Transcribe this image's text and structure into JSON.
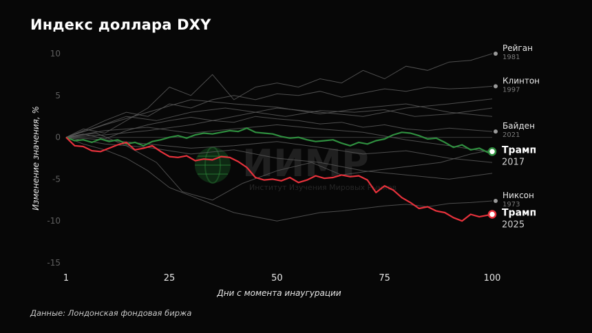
{
  "title": "Индекс доллара DXY",
  "source": "Данные: Лондонская фондовая биржа",
  "watermark": {
    "big": "ИИМР",
    "small": "Институт Изучения Мировых Рынков"
  },
  "colors": {
    "background": "#070707",
    "grey_series": "#5a5a5a",
    "trump2017": "#2f8f3f",
    "trump2025": "#e8323c",
    "zero_line": "#3a3a3a"
  },
  "chart_data": {
    "type": "line",
    "title": "Индекс доллара DXY",
    "xlabel": "Дни с момента инаугурации",
    "ylabel": "Изменение значения, %",
    "xlim": [
      1,
      100
    ],
    "ylim": [
      -15,
      10
    ],
    "x_ticks": [
      "1",
      "25",
      "50",
      "75",
      "100"
    ],
    "y_ticks": [
      "10",
      "5",
      "0",
      "-5",
      "-10",
      "-15"
    ],
    "grid": false,
    "background_series": [
      {
        "name": "Рейган",
        "year": "1981",
        "label_value": 10.0,
        "points": [
          [
            1,
            0
          ],
          [
            5,
            1
          ],
          [
            10,
            0.5
          ],
          [
            15,
            2
          ],
          [
            20,
            3.5
          ],
          [
            25,
            6
          ],
          [
            30,
            5
          ],
          [
            35,
            7.5
          ],
          [
            40,
            4.5
          ],
          [
            45,
            6
          ],
          [
            50,
            6.5
          ],
          [
            55,
            6
          ],
          [
            60,
            7
          ],
          [
            65,
            6.5
          ],
          [
            70,
            8
          ],
          [
            75,
            7
          ],
          [
            80,
            8.5
          ],
          [
            85,
            8
          ],
          [
            90,
            9
          ],
          [
            95,
            9.2
          ],
          [
            100,
            10
          ]
        ]
      },
      {
        "name": "Клинтон",
        "year": "1997",
        "label_value": 6.1,
        "points": [
          [
            1,
            0
          ],
          [
            5,
            0.8
          ],
          [
            10,
            2
          ],
          [
            15,
            3
          ],
          [
            20,
            2.5
          ],
          [
            25,
            4
          ],
          [
            30,
            3.5
          ],
          [
            35,
            4.5
          ],
          [
            40,
            5
          ],
          [
            45,
            4.5
          ],
          [
            50,
            5.2
          ],
          [
            55,
            5
          ],
          [
            60,
            5.5
          ],
          [
            65,
            4.8
          ],
          [
            70,
            5.3
          ],
          [
            75,
            5.8
          ],
          [
            80,
            5.5
          ],
          [
            85,
            6
          ],
          [
            90,
            5.8
          ],
          [
            95,
            5.9
          ],
          [
            100,
            6.1
          ]
        ]
      },
      {
        "name": "Байден",
        "year": "2021",
        "label_value": 0.7,
        "points": [
          [
            1,
            0
          ],
          [
            5,
            0.4
          ],
          [
            10,
            -0.2
          ],
          [
            15,
            0.8
          ],
          [
            20,
            1.5
          ],
          [
            25,
            2
          ],
          [
            30,
            2.4
          ],
          [
            35,
            2
          ],
          [
            40,
            1.8
          ],
          [
            45,
            2.5
          ],
          [
            50,
            2.2
          ],
          [
            55,
            2
          ],
          [
            60,
            1.6
          ],
          [
            65,
            1.8
          ],
          [
            70,
            1.2
          ],
          [
            75,
            1.5
          ],
          [
            80,
            1
          ],
          [
            85,
            0.8
          ],
          [
            90,
            1.1
          ],
          [
            95,
            0.9
          ],
          [
            100,
            0.7
          ]
        ]
      },
      {
        "name": "Никсон",
        "year": "1973",
        "label_value": -7.6,
        "points": [
          [
            1,
            0
          ],
          [
            5,
            -0.8
          ],
          [
            10,
            -1.5
          ],
          [
            15,
            -2.5
          ],
          [
            20,
            -4
          ],
          [
            25,
            -6
          ],
          [
            30,
            -7
          ],
          [
            35,
            -8
          ],
          [
            40,
            -9
          ],
          [
            45,
            -9.5
          ],
          [
            50,
            -10
          ],
          [
            55,
            -9.5
          ],
          [
            60,
            -9
          ],
          [
            65,
            -8.8
          ],
          [
            70,
            -8.5
          ],
          [
            75,
            -8.2
          ],
          [
            80,
            -8
          ],
          [
            85,
            -8.3
          ],
          [
            90,
            -7.9
          ],
          [
            95,
            -7.8
          ],
          [
            100,
            -7.6
          ]
        ]
      },
      {
        "points": [
          [
            1,
            0
          ],
          [
            8,
            1.2
          ],
          [
            15,
            2.5
          ],
          [
            22,
            2
          ],
          [
            30,
            3
          ],
          [
            38,
            3.5
          ],
          [
            45,
            3
          ],
          [
            52,
            2.5
          ],
          [
            60,
            3.2
          ],
          [
            68,
            3
          ],
          [
            75,
            3.3
          ],
          [
            82,
            2.5
          ],
          [
            90,
            2.8
          ],
          [
            100,
            3.5
          ]
        ]
      },
      {
        "points": [
          [
            1,
            0
          ],
          [
            10,
            1.5
          ],
          [
            20,
            3
          ],
          [
            30,
            4.5
          ],
          [
            40,
            4
          ],
          [
            50,
            3.6
          ],
          [
            60,
            2.8
          ],
          [
            70,
            3.5
          ],
          [
            80,
            4
          ],
          [
            90,
            3
          ],
          [
            100,
            2.5
          ]
        ]
      },
      {
        "points": [
          [
            1,
            0
          ],
          [
            8,
            0.5
          ],
          [
            15,
            -1
          ],
          [
            22,
            -3
          ],
          [
            28,
            -6.5
          ],
          [
            35,
            -7.5
          ],
          [
            42,
            -5.5
          ],
          [
            50,
            -4
          ],
          [
            58,
            -3
          ],
          [
            65,
            -4.5
          ],
          [
            72,
            -4
          ],
          [
            80,
            -3.5
          ],
          [
            88,
            -3
          ],
          [
            95,
            -2
          ],
          [
            100,
            -1.5
          ]
        ]
      },
      {
        "points": [
          [
            1,
            0
          ],
          [
            10,
            -0.8
          ],
          [
            20,
            -1.2
          ],
          [
            30,
            -2
          ],
          [
            40,
            -1.5
          ],
          [
            50,
            -2.5
          ],
          [
            60,
            -3
          ],
          [
            70,
            -4
          ],
          [
            80,
            -4.5
          ],
          [
            90,
            -5
          ],
          [
            100,
            -4.3
          ]
        ]
      },
      {
        "points": [
          [
            1,
            0
          ],
          [
            10,
            0.8
          ],
          [
            20,
            1.2
          ],
          [
            30,
            0.5
          ],
          [
            40,
            1
          ],
          [
            50,
            1.5
          ],
          [
            60,
            1
          ],
          [
            70,
            0.6
          ],
          [
            80,
            -0.3
          ],
          [
            90,
            -1
          ],
          [
            100,
            -1.8
          ]
        ]
      },
      {
        "points": [
          [
            1,
            0
          ],
          [
            10,
            0.3
          ],
          [
            20,
            0.8
          ],
          [
            30,
            1.5
          ],
          [
            40,
            2.5
          ],
          [
            50,
            3.5
          ],
          [
            60,
            3
          ],
          [
            70,
            2.5
          ],
          [
            80,
            3.5
          ],
          [
            90,
            4
          ],
          [
            100,
            4.6
          ]
        ]
      },
      {
        "points": [
          [
            1,
            0
          ],
          [
            10,
            -0.3
          ],
          [
            20,
            -0.8
          ],
          [
            30,
            -1.3
          ],
          [
            40,
            -1
          ],
          [
            50,
            -0.5
          ],
          [
            60,
            -1.2
          ],
          [
            70,
            -2
          ],
          [
            80,
            -1.6
          ],
          [
            90,
            -2.5
          ],
          [
            100,
            -3
          ]
        ]
      }
    ],
    "highlighted_series": [
      {
        "name": "Трамп",
        "year": "2017",
        "end_value": -1.7,
        "points": [
          [
            1,
            0
          ],
          [
            3,
            -0.4
          ],
          [
            5,
            -0.3
          ],
          [
            7,
            -0.6
          ],
          [
            9,
            -0.2
          ],
          [
            11,
            -0.5
          ],
          [
            13,
            -0.3
          ],
          [
            15,
            -0.8
          ],
          [
            17,
            -0.6
          ],
          [
            19,
            -1
          ],
          [
            21,
            -0.5
          ],
          [
            23,
            -0.3
          ],
          [
            25,
            0
          ],
          [
            27,
            0.2
          ],
          [
            29,
            -0.1
          ],
          [
            31,
            0.3
          ],
          [
            33,
            0.5
          ],
          [
            35,
            0.4
          ],
          [
            37,
            0.6
          ],
          [
            39,
            0.8
          ],
          [
            41,
            0.7
          ],
          [
            43,
            1.1
          ],
          [
            45,
            0.6
          ],
          [
            47,
            0.5
          ],
          [
            49,
            0.4
          ],
          [
            51,
            0.1
          ],
          [
            53,
            -0.1
          ],
          [
            55,
            0
          ],
          [
            57,
            -0.3
          ],
          [
            59,
            -0.5
          ],
          [
            61,
            -0.4
          ],
          [
            63,
            -0.3
          ],
          [
            65,
            -0.7
          ],
          [
            67,
            -1
          ],
          [
            69,
            -0.6
          ],
          [
            71,
            -0.8
          ],
          [
            73,
            -0.4
          ],
          [
            75,
            -0.2
          ],
          [
            77,
            0.3
          ],
          [
            79,
            0.6
          ],
          [
            81,
            0.5
          ],
          [
            83,
            0.2
          ],
          [
            85,
            -0.2
          ],
          [
            87,
            -0.1
          ],
          [
            89,
            -0.6
          ],
          [
            91,
            -1.2
          ],
          [
            93,
            -0.9
          ],
          [
            95,
            -1.5
          ],
          [
            97,
            -1.3
          ],
          [
            99,
            -1.8
          ],
          [
            100,
            -1.7
          ]
        ]
      },
      {
        "name": "Трамп",
        "year": "2025",
        "end_value": -9.2,
        "points": [
          [
            1,
            0
          ],
          [
            3,
            -1
          ],
          [
            5,
            -1.1
          ],
          [
            7,
            -1.6
          ],
          [
            9,
            -1.7
          ],
          [
            11,
            -1.3
          ],
          [
            13,
            -0.9
          ],
          [
            15,
            -0.6
          ],
          [
            17,
            -1.5
          ],
          [
            19,
            -1.3
          ],
          [
            21,
            -1
          ],
          [
            23,
            -1.7
          ],
          [
            25,
            -2.3
          ],
          [
            27,
            -2.4
          ],
          [
            29,
            -2.2
          ],
          [
            31,
            -2.8
          ],
          [
            33,
            -2.6
          ],
          [
            35,
            -2.7
          ],
          [
            37,
            -2.3
          ],
          [
            39,
            -2.4
          ],
          [
            41,
            -2.9
          ],
          [
            43,
            -3.6
          ],
          [
            45,
            -4.8
          ],
          [
            47,
            -5.1
          ],
          [
            49,
            -5.0
          ],
          [
            51,
            -5.2
          ],
          [
            53,
            -4.8
          ],
          [
            55,
            -5.4
          ],
          [
            57,
            -5.1
          ],
          [
            59,
            -4.6
          ],
          [
            61,
            -4.9
          ],
          [
            63,
            -4.8
          ],
          [
            65,
            -4.5
          ],
          [
            67,
            -4.7
          ],
          [
            69,
            -4.6
          ],
          [
            71,
            -5.1
          ],
          [
            73,
            -6.6
          ],
          [
            75,
            -5.8
          ],
          [
            77,
            -6.3
          ],
          [
            79,
            -7.2
          ],
          [
            81,
            -7.8
          ],
          [
            83,
            -8.5
          ],
          [
            85,
            -8.3
          ],
          [
            87,
            -8.8
          ],
          [
            89,
            -9
          ],
          [
            91,
            -9.6
          ],
          [
            93,
            -10
          ],
          [
            95,
            -9.2
          ],
          [
            97,
            -9.5
          ],
          [
            99,
            -9.3
          ],
          [
            100,
            -9.2
          ]
        ]
      }
    ]
  }
}
